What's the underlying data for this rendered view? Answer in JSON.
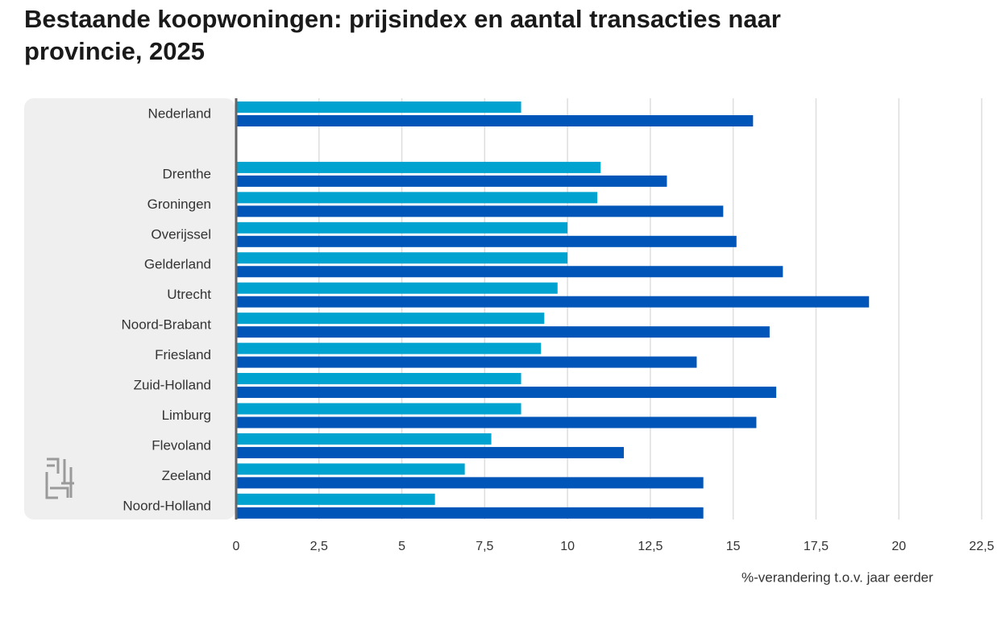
{
  "chart_data": {
    "type": "hbar",
    "title": "Bestaande koopwoningen: prijsindex en aantal transacties naar provincie, 2025",
    "x_label": "%-verandering t.o.v. jaar eerder",
    "categories": [
      "Nederland",
      null,
      "Drenthe",
      "Groningen",
      "Overijssel",
      "Gelderland",
      "Utrecht",
      "Noord-Brabant",
      "Friesland",
      "Zuid-Holland",
      "Limburg",
      "Flevoland",
      "Zeeland",
      "Noord-Holland"
    ],
    "series": [
      {
        "color": "#00a3cf",
        "values": [
          8.6,
          null,
          11.0,
          10.9,
          10.0,
          10.0,
          9.7,
          9.3,
          9.2,
          8.6,
          8.6,
          7.7,
          6.9,
          6.0
        ]
      },
      {
        "color": "#0055b8",
        "values": [
          15.6,
          null,
          13.0,
          14.7,
          15.1,
          16.5,
          19.1,
          16.1,
          13.9,
          16.3,
          15.7,
          11.7,
          14.1,
          14.1
        ]
      }
    ],
    "xlim": [
      0,
      22.5
    ],
    "xticks": [
      0,
      {
        "value": 2.5,
        "label": "2,5"
      },
      5,
      {
        "value": 7.5,
        "label": "7,5"
      },
      10,
      {
        "value": 12.5,
        "label": "12,5"
      },
      15,
      {
        "value": 17.5,
        "label": "17,5"
      },
      20,
      {
        "value": 22.5,
        "label": "22,5"
      }
    ],
    "grid": true
  }
}
